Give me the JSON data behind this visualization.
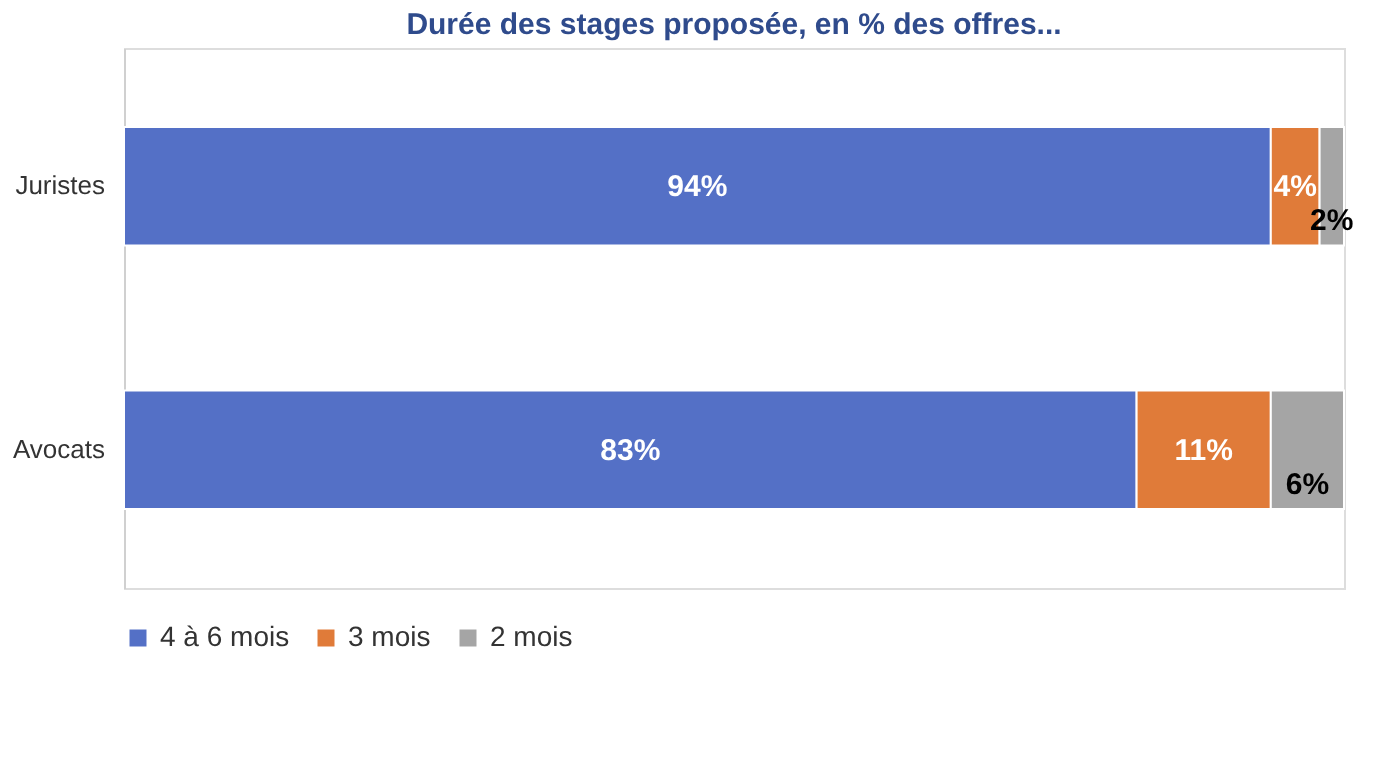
{
  "chart_data": {
    "type": "bar",
    "orientation": "horizontal",
    "stacked": true,
    "title": "Durée des stages proposée, en % des offres...",
    "categories": [
      "Juristes",
      "Avocats"
    ],
    "legend": "bottom",
    "series": [
      {
        "name": "4 à 6 mois",
        "color": "#5470c6",
        "values": [
          94,
          83
        ],
        "value_labels": [
          "94%",
          "83%"
        ]
      },
      {
        "name": "3 mois",
        "color": "#e07b39",
        "values": [
          4,
          11
        ],
        "value_labels": [
          "4%",
          "11%"
        ]
      },
      {
        "name": "2 mois",
        "color": "#a5a5a5",
        "values": [
          2,
          6
        ],
        "value_labels": [
          "2%",
          "6%"
        ]
      }
    ]
  }
}
